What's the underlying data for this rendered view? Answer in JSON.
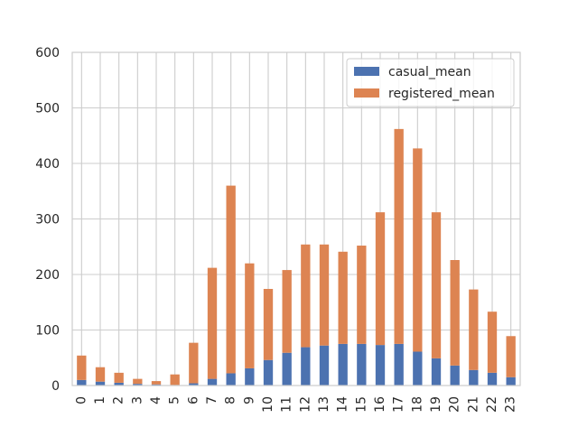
{
  "chart_data": {
    "type": "bar",
    "stacked": true,
    "title": "",
    "xlabel": "",
    "ylabel": "",
    "categories": [
      "0",
      "1",
      "2",
      "3",
      "4",
      "5",
      "6",
      "7",
      "8",
      "9",
      "10",
      "11",
      "12",
      "13",
      "14",
      "15",
      "16",
      "17",
      "18",
      "19",
      "20",
      "21",
      "22",
      "23"
    ],
    "series": [
      {
        "name": "casual_mean",
        "color": "#4c72b0",
        "values": [
          10,
          7,
          5,
          3,
          2,
          1,
          4,
          12,
          22,
          31,
          46,
          59,
          69,
          72,
          75,
          75,
          73,
          75,
          61,
          49,
          36,
          28,
          23,
          15
        ]
      },
      {
        "name": "registered_mean",
        "color": "#dd8452",
        "values": [
          44,
          26,
          18,
          9,
          6,
          19,
          73,
          200,
          338,
          189,
          128,
          149,
          185,
          182,
          166,
          177,
          239,
          387,
          366,
          263,
          190,
          145,
          110,
          74
        ]
      }
    ],
    "ylim": [
      0,
      600
    ],
    "yticks": [
      "0",
      "100",
      "200",
      "300",
      "400",
      "500",
      "600"
    ],
    "grid": true,
    "legend_position": "upper-right"
  }
}
